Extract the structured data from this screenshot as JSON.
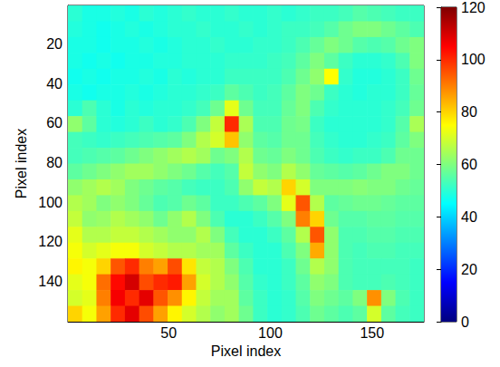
{
  "chart_data": {
    "type": "heatmap",
    "xlabel": "Pixel index",
    "ylabel": "Pixel index",
    "xlim": [
      0.5,
      175.5
    ],
    "ylim": [
      0.5,
      160.5
    ],
    "xticks": [
      50,
      100,
      150
    ],
    "yticks": [
      20,
      40,
      60,
      80,
      100,
      120,
      140
    ],
    "x": [
      4,
      11,
      18,
      25,
      32,
      39,
      46,
      53,
      60,
      67,
      74,
      81,
      88,
      95,
      102,
      109,
      116,
      123,
      130,
      137,
      144,
      151,
      158,
      165,
      172
    ],
    "y": [
      4.5,
      12.5,
      20.5,
      28.5,
      36.5,
      44.5,
      52.5,
      60.5,
      68.5,
      76.5,
      84.5,
      92.5,
      100.5,
      108.5,
      116.5,
      124.5,
      132.5,
      140.5,
      148.5,
      156.5
    ],
    "values": [
      [
        50,
        48,
        48,
        49,
        48,
        50,
        49,
        50,
        51,
        50,
        50,
        51,
        50,
        50,
        51,
        50,
        51,
        52,
        52,
        53,
        55,
        54,
        53,
        52,
        52
      ],
      [
        49,
        48,
        47,
        48,
        49,
        48,
        49,
        50,
        50,
        51,
        50,
        50,
        51,
        50,
        51,
        52,
        52,
        53,
        55,
        58,
        60,
        60,
        58,
        56,
        54
      ],
      [
        48,
        48,
        47,
        48,
        48,
        49,
        48,
        49,
        50,
        50,
        51,
        50,
        50,
        51,
        51,
        52,
        54,
        57,
        60,
        58,
        55,
        54,
        55,
        58,
        60
      ],
      [
        48,
        47,
        48,
        47,
        48,
        48,
        49,
        49,
        50,
        50,
        50,
        51,
        51,
        51,
        52,
        53,
        56,
        60,
        56,
        52,
        50,
        50,
        51,
        54,
        60
      ],
      [
        47,
        48,
        47,
        48,
        48,
        49,
        48,
        50,
        49,
        50,
        50,
        52,
        52,
        52,
        52,
        54,
        58,
        62,
        75,
        51,
        49,
        49,
        50,
        52,
        58
      ],
      [
        48,
        47,
        48,
        48,
        49,
        48,
        49,
        50,
        50,
        51,
        52,
        56,
        54,
        52,
        53,
        56,
        60,
        58,
        52,
        50,
        49,
        50,
        50,
        52,
        57
      ],
      [
        50,
        54,
        50,
        48,
        50,
        49,
        50,
        50,
        51,
        53,
        58,
        72,
        58,
        53,
        53,
        57,
        60,
        54,
        51,
        50,
        50,
        50,
        51,
        53,
        58
      ],
      [
        62,
        56,
        50,
        49,
        50,
        52,
        50,
        51,
        54,
        60,
        68,
        100,
        65,
        54,
        54,
        58,
        59,
        52,
        50,
        50,
        50,
        50,
        51,
        55,
        65
      ],
      [
        53,
        52,
        51,
        52,
        53,
        54,
        55,
        56,
        60,
        66,
        70,
        82,
        62,
        56,
        55,
        58,
        58,
        53,
        51,
        50,
        50,
        51,
        52,
        56,
        60
      ],
      [
        53,
        54,
        55,
        56,
        58,
        60,
        62,
        64,
        66,
        64,
        58,
        60,
        66,
        58,
        57,
        60,
        58,
        54,
        52,
        51,
        52,
        52,
        54,
        58,
        58
      ],
      [
        56,
        58,
        60,
        62,
        64,
        64,
        62,
        60,
        58,
        55,
        53,
        55,
        68,
        62,
        60,
        66,
        62,
        57,
        56,
        55,
        56,
        58,
        60,
        60,
        58
      ],
      [
        62,
        64,
        66,
        64,
        60,
        58,
        56,
        55,
        53,
        52,
        52,
        54,
        62,
        68,
        66,
        80,
        70,
        60,
        60,
        60,
        61,
        60,
        60,
        58,
        57
      ],
      [
        66,
        64,
        60,
        62,
        60,
        57,
        54,
        55,
        58,
        56,
        52,
        52,
        54,
        56,
        60,
        72,
        95,
        66,
        56,
        57,
        58,
        58,
        57,
        56,
        56
      ],
      [
        68,
        62,
        63,
        66,
        64,
        62,
        58,
        62,
        66,
        60,
        54,
        50,
        50,
        52,
        55,
        60,
        90,
        80,
        58,
        55,
        55,
        56,
        56,
        55,
        55
      ],
      [
        72,
        66,
        66,
        68,
        68,
        66,
        64,
        62,
        62,
        66,
        60,
        53,
        50,
        50,
        52,
        56,
        66,
        95,
        62,
        54,
        54,
        55,
        55,
        54,
        54
      ],
      [
        74,
        70,
        72,
        74,
        74,
        70,
        68,
        66,
        66,
        64,
        64,
        56,
        52,
        50,
        50,
        54,
        60,
        85,
        62,
        54,
        53,
        54,
        54,
        53,
        53
      ],
      [
        76,
        74,
        80,
        95,
        100,
        90,
        86,
        96,
        78,
        68,
        66,
        60,
        54,
        50,
        50,
        52,
        58,
        66,
        62,
        54,
        53,
        53,
        53,
        53,
        52
      ],
      [
        72,
        74,
        92,
        104,
        110,
        96,
        100,
        102,
        86,
        70,
        66,
        62,
        55,
        51,
        50,
        52,
        56,
        62,
        60,
        54,
        53,
        53,
        54,
        53,
        52
      ],
      [
        70,
        72,
        90,
        106,
        100,
        108,
        95,
        88,
        76,
        68,
        64,
        64,
        56,
        52,
        50,
        51,
        55,
        60,
        58,
        56,
        60,
        88,
        60,
        54,
        52
      ],
      [
        80,
        74,
        86,
        100,
        108,
        96,
        86,
        76,
        70,
        66,
        62,
        64,
        58,
        52,
        50,
        51,
        54,
        58,
        56,
        54,
        56,
        70,
        56,
        53,
        52
      ]
    ],
    "colorbar": {
      "range": [
        0,
        120
      ],
      "ticks": [
        0,
        20,
        40,
        60,
        80,
        100,
        120
      ]
    }
  }
}
